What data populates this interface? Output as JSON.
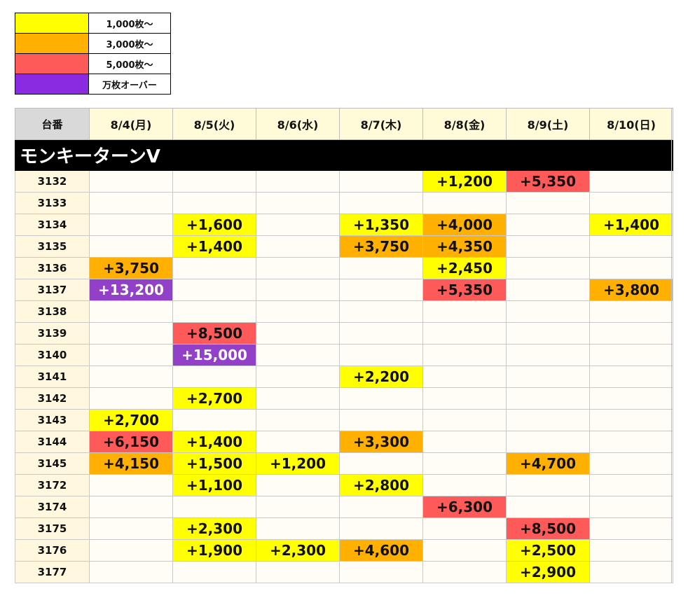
{
  "legend": [
    {
      "color": "#ffff00",
      "label": "1,000枚〜"
    },
    {
      "color": "#ffb000",
      "label": "3,000枚〜"
    },
    {
      "color": "#ff5a5a",
      "label": "5,000枚〜"
    },
    {
      "color": "#8a2be2",
      "label": "万枚オーバー"
    }
  ],
  "table": {
    "corner_label": "台番",
    "dates": [
      "8/4(月)",
      "8/5(火)",
      "8/6(水)",
      "8/7(木)",
      "8/8(金)",
      "8/9(土)",
      "8/10(日)"
    ],
    "machine_name": "モンキーターンV",
    "rows": [
      {
        "num": "3132",
        "cells": [
          "",
          "",
          "",
          "",
          "+1,200",
          "+5,350",
          ""
        ]
      },
      {
        "num": "3133",
        "cells": [
          "",
          "",
          "",
          "",
          "",
          "",
          ""
        ]
      },
      {
        "num": "3134",
        "cells": [
          "",
          "+1,600",
          "",
          "+1,350",
          "+4,000",
          "",
          "+1,400"
        ]
      },
      {
        "num": "3135",
        "cells": [
          "",
          "+1,400",
          "",
          "+3,750",
          "+4,350",
          "",
          ""
        ]
      },
      {
        "num": "3136",
        "cells": [
          "+3,750",
          "",
          "",
          "",
          "+2,450",
          "",
          ""
        ]
      },
      {
        "num": "3137",
        "cells": [
          "+13,200",
          "",
          "",
          "",
          "+5,350",
          "",
          "+3,800"
        ]
      },
      {
        "num": "3138",
        "cells": [
          "",
          "",
          "",
          "",
          "",
          "",
          ""
        ]
      },
      {
        "num": "3139",
        "cells": [
          "",
          "+8,500",
          "",
          "",
          "",
          "",
          ""
        ]
      },
      {
        "num": "3140",
        "cells": [
          "",
          "+15,000",
          "",
          "",
          "",
          "",
          ""
        ]
      },
      {
        "num": "3141",
        "cells": [
          "",
          "",
          "",
          "+2,200",
          "",
          "",
          ""
        ]
      },
      {
        "num": "3142",
        "cells": [
          "",
          "+2,700",
          "",
          "",
          "",
          "",
          ""
        ]
      },
      {
        "num": "3143",
        "cells": [
          "+2,700",
          "",
          "",
          "",
          "",
          "",
          ""
        ]
      },
      {
        "num": "3144",
        "cells": [
          "+6,150",
          "+1,400",
          "",
          "+3,300",
          "",
          "",
          ""
        ]
      },
      {
        "num": "3145",
        "cells": [
          "+4,150",
          "+1,500",
          "+1,200",
          "",
          "",
          "+4,700",
          ""
        ]
      },
      {
        "num": "3172",
        "cells": [
          "",
          "+1,100",
          "",
          "+2,800",
          "",
          "",
          ""
        ]
      },
      {
        "num": "3174",
        "cells": [
          "",
          "",
          "",
          "",
          "+6,300",
          "",
          ""
        ]
      },
      {
        "num": "3175",
        "cells": [
          "",
          "+2,300",
          "",
          "",
          "",
          "+8,500",
          ""
        ]
      },
      {
        "num": "3176",
        "cells": [
          "",
          "+1,900",
          "+2,300",
          "+4,600",
          "",
          "+2,500",
          ""
        ]
      },
      {
        "num": "3177",
        "cells": [
          "",
          "",
          "",
          "",
          "",
          "+2,900",
          ""
        ]
      }
    ]
  }
}
